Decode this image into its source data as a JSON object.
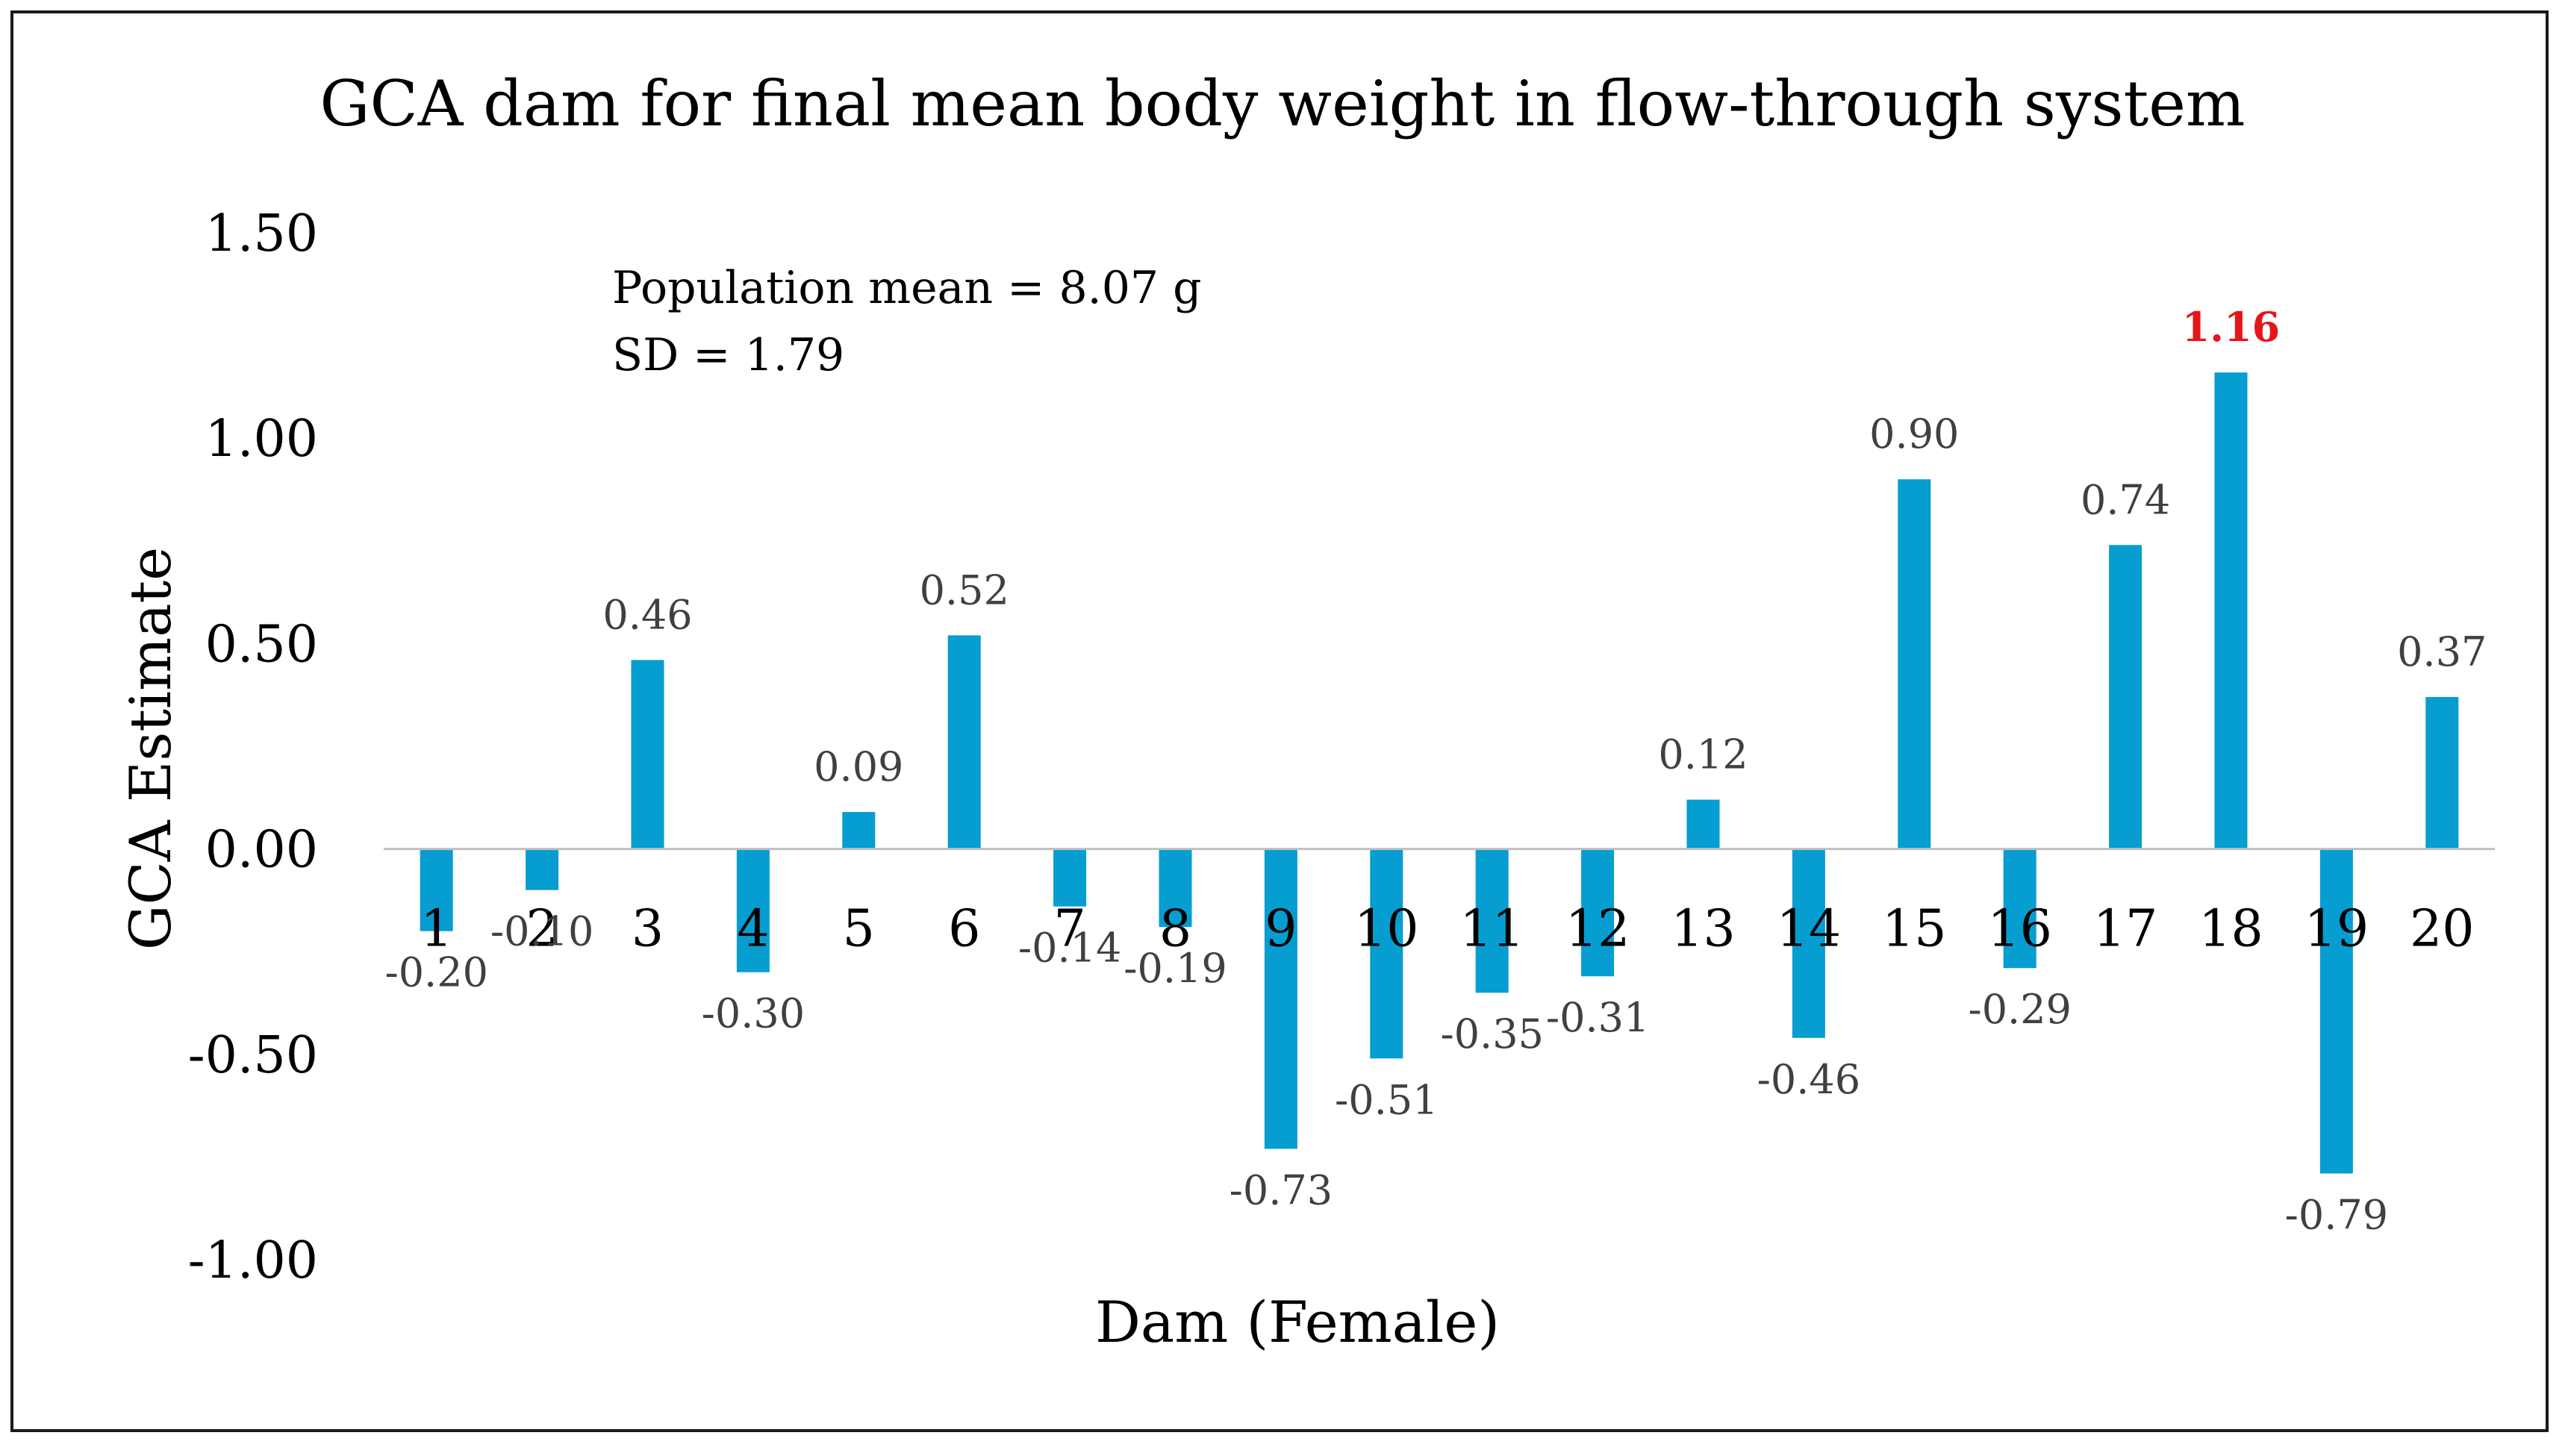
{
  "chart_data": {
    "type": "bar",
    "title": "GCA dam for final mean body weight in flow-through system",
    "xlabel": "Dam (Female)",
    "ylabel": "GCA Estimate",
    "ylim": [
      -1.0,
      1.5
    ],
    "yticks": [
      "1.50",
      "1.00",
      "0.50",
      "0.00",
      "-0.50",
      "-1.00"
    ],
    "ytick_values": [
      1.5,
      1.0,
      0.5,
      0.0,
      -0.5,
      -1.0
    ],
    "grid": false,
    "categories": [
      "1",
      "2",
      "3",
      "4",
      "5",
      "6",
      "7",
      "8",
      "9",
      "10",
      "11",
      "12",
      "13",
      "14",
      "15",
      "16",
      "17",
      "18",
      "19",
      "20"
    ],
    "values": [
      -0.2,
      -0.1,
      0.46,
      -0.3,
      0.09,
      0.52,
      -0.14,
      -0.19,
      -0.73,
      -0.51,
      -0.35,
      -0.31,
      0.12,
      -0.46,
      0.9,
      -0.29,
      0.74,
      1.16,
      -0.79,
      0.37
    ],
    "value_labels": [
      "-0.20",
      "-0.10",
      "0.46",
      "-0.30",
      "0.09",
      "0.52",
      "-0.14",
      "-0.19",
      "-0.73",
      "-0.51",
      "-0.35",
      "-0.31",
      "0.12",
      "-0.46",
      "0.90",
      "-0.29",
      "0.74",
      "1.16",
      "-0.79",
      "0.37"
    ],
    "highlight_index": 17,
    "annotations": [
      "Population mean = 8.07 g",
      "SD = 1.79"
    ],
    "colors": {
      "bar": "#069dd1",
      "highlight_label": "#e8141b",
      "axis": "#bfbfbf",
      "text": "#000000",
      "label": "#404040"
    }
  }
}
